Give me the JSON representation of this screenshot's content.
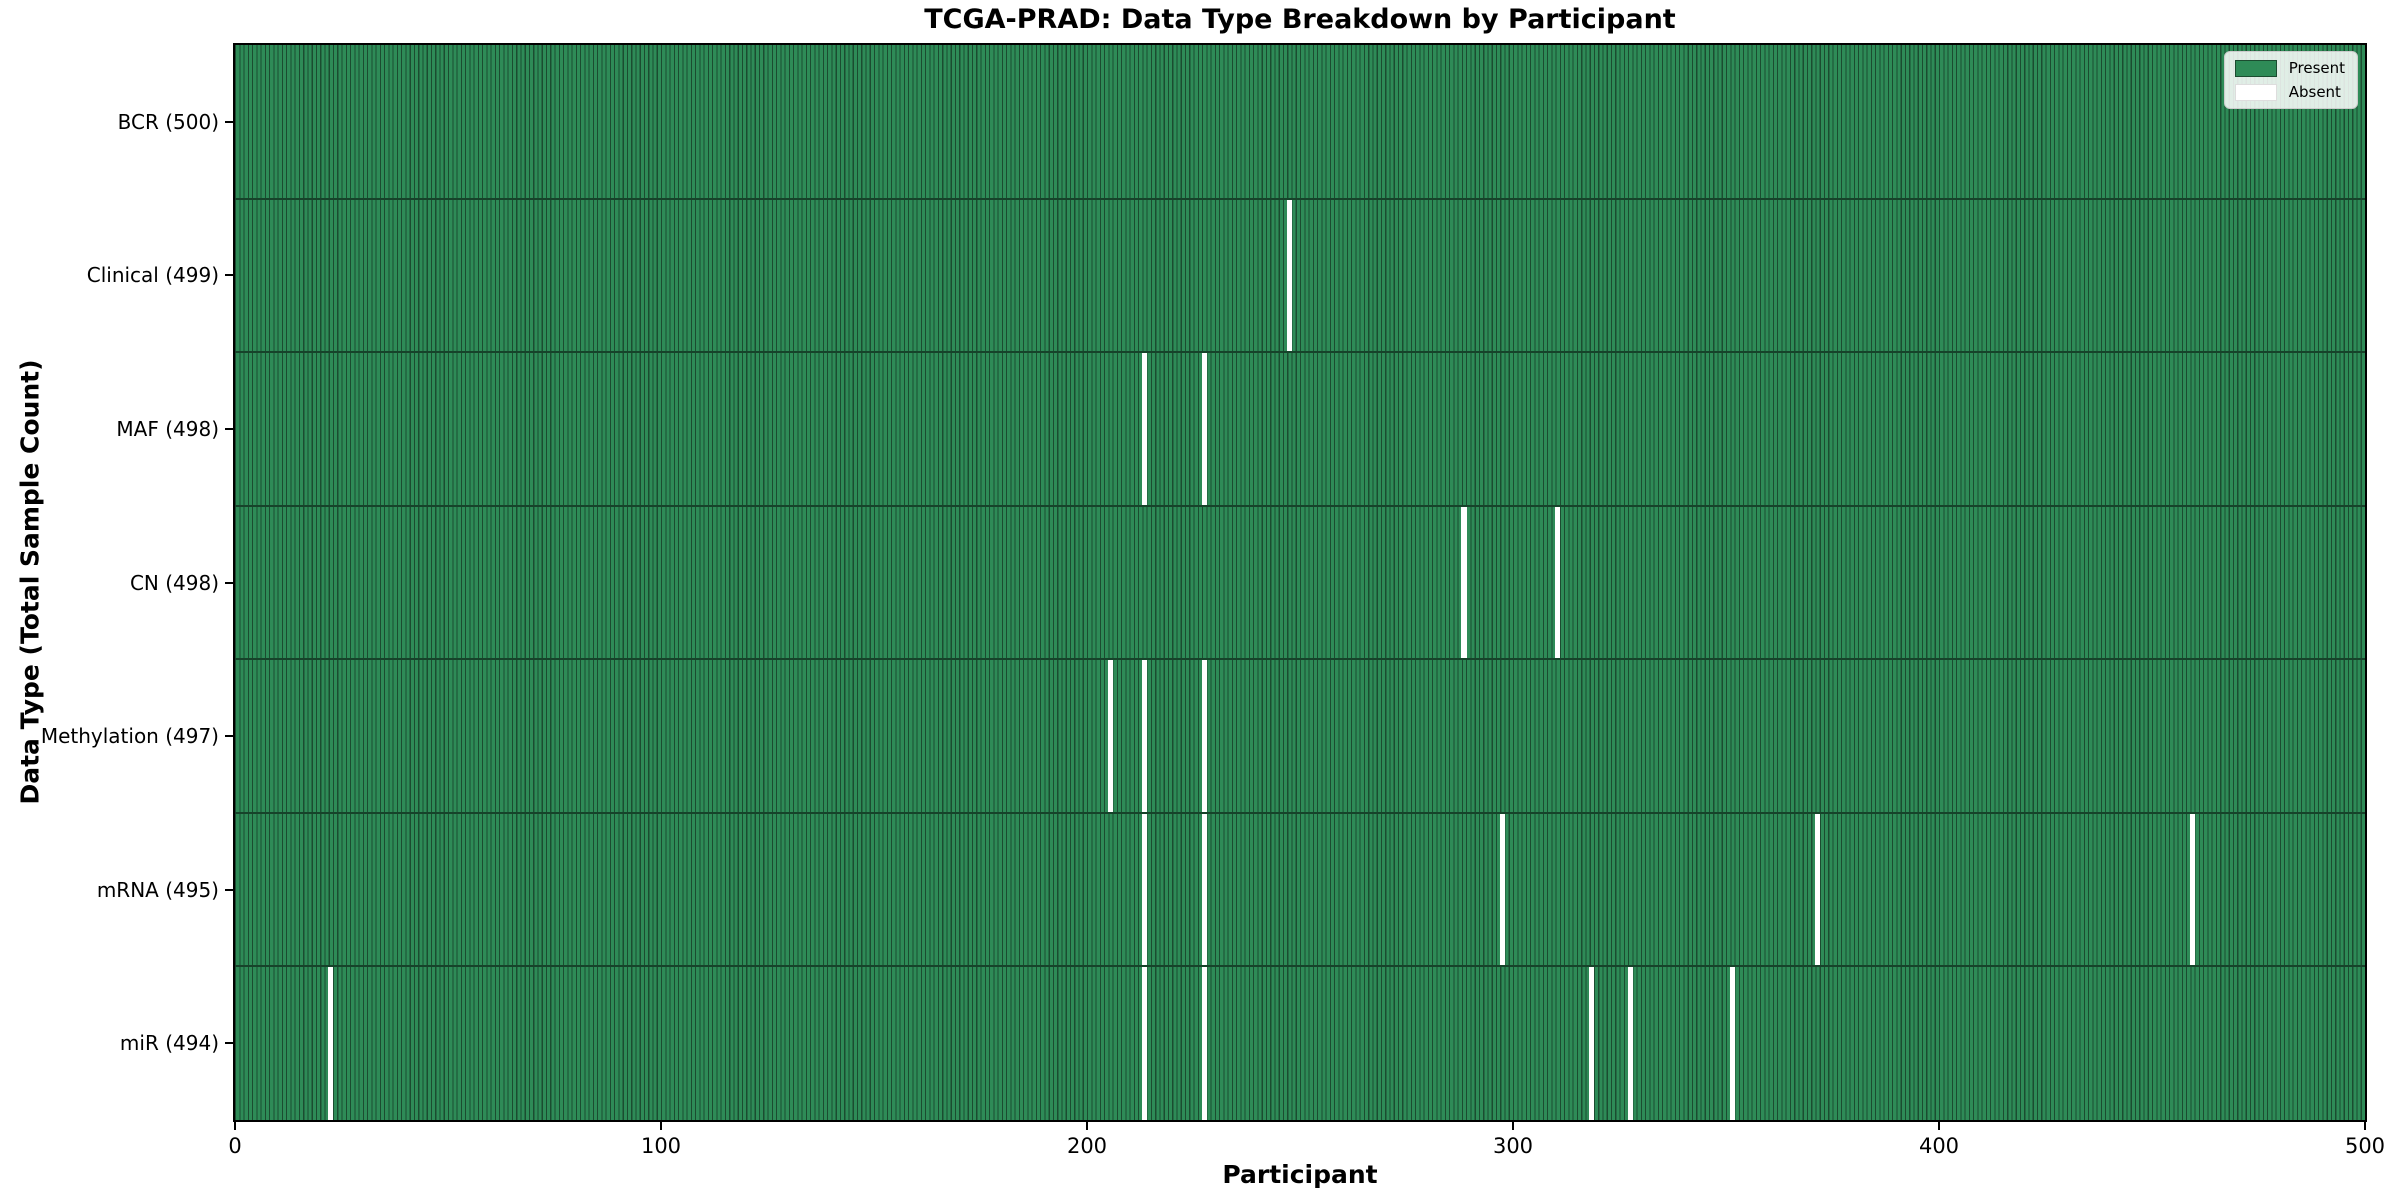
{
  "title": "TCGA-PRAD: Data Type Breakdown by Participant",
  "xlabel": "Participant",
  "ylabel": "Data Type (Total Sample Count)",
  "legend": {
    "present_label": "Present",
    "absent_label": "Absent",
    "position": "upper right"
  },
  "colors": {
    "present": "#2e8b57",
    "present_edge": "#1b4c30",
    "absent": "#ffffff",
    "separator": "#16432a",
    "axis": "#000000",
    "legend_border": "#cccccc"
  },
  "chart_data": {
    "type": "heatmap",
    "title": "TCGA-PRAD: Data Type Breakdown by Participant",
    "xlabel": "Participant",
    "ylabel": "Data Type (Total Sample Count)",
    "x_range": [
      0,
      500
    ],
    "x_ticks": [
      0,
      100,
      200,
      300,
      400,
      500
    ],
    "n_participants": 500,
    "grid": false,
    "legend_position": "upper right",
    "cell_states": [
      "Present",
      "Absent"
    ],
    "rows": [
      {
        "label": "BCR (500)",
        "data_type": "BCR",
        "present_count": 500,
        "absent_participants": []
      },
      {
        "label": "Clinical (499)",
        "data_type": "Clinical",
        "present_count": 499,
        "absent_participants": [
          247
        ]
      },
      {
        "label": "MAF (498)",
        "data_type": "MAF",
        "present_count": 498,
        "absent_participants": [
          213,
          227
        ]
      },
      {
        "label": "CN (498)",
        "data_type": "CN",
        "present_count": 498,
        "absent_participants": [
          288,
          310
        ]
      },
      {
        "label": "Methylation (497)",
        "data_type": "Methylation",
        "present_count": 497,
        "absent_participants": [
          205,
          213,
          227
        ]
      },
      {
        "label": "mRNA (495)",
        "data_type": "mRNA",
        "present_count": 495,
        "absent_participants": [
          213,
          227,
          297,
          371,
          459
        ]
      },
      {
        "label": "miR (494)",
        "data_type": "miR",
        "present_count": 494,
        "absent_participants": [
          22,
          213,
          227,
          318,
          327,
          351
        ]
      }
    ]
  }
}
